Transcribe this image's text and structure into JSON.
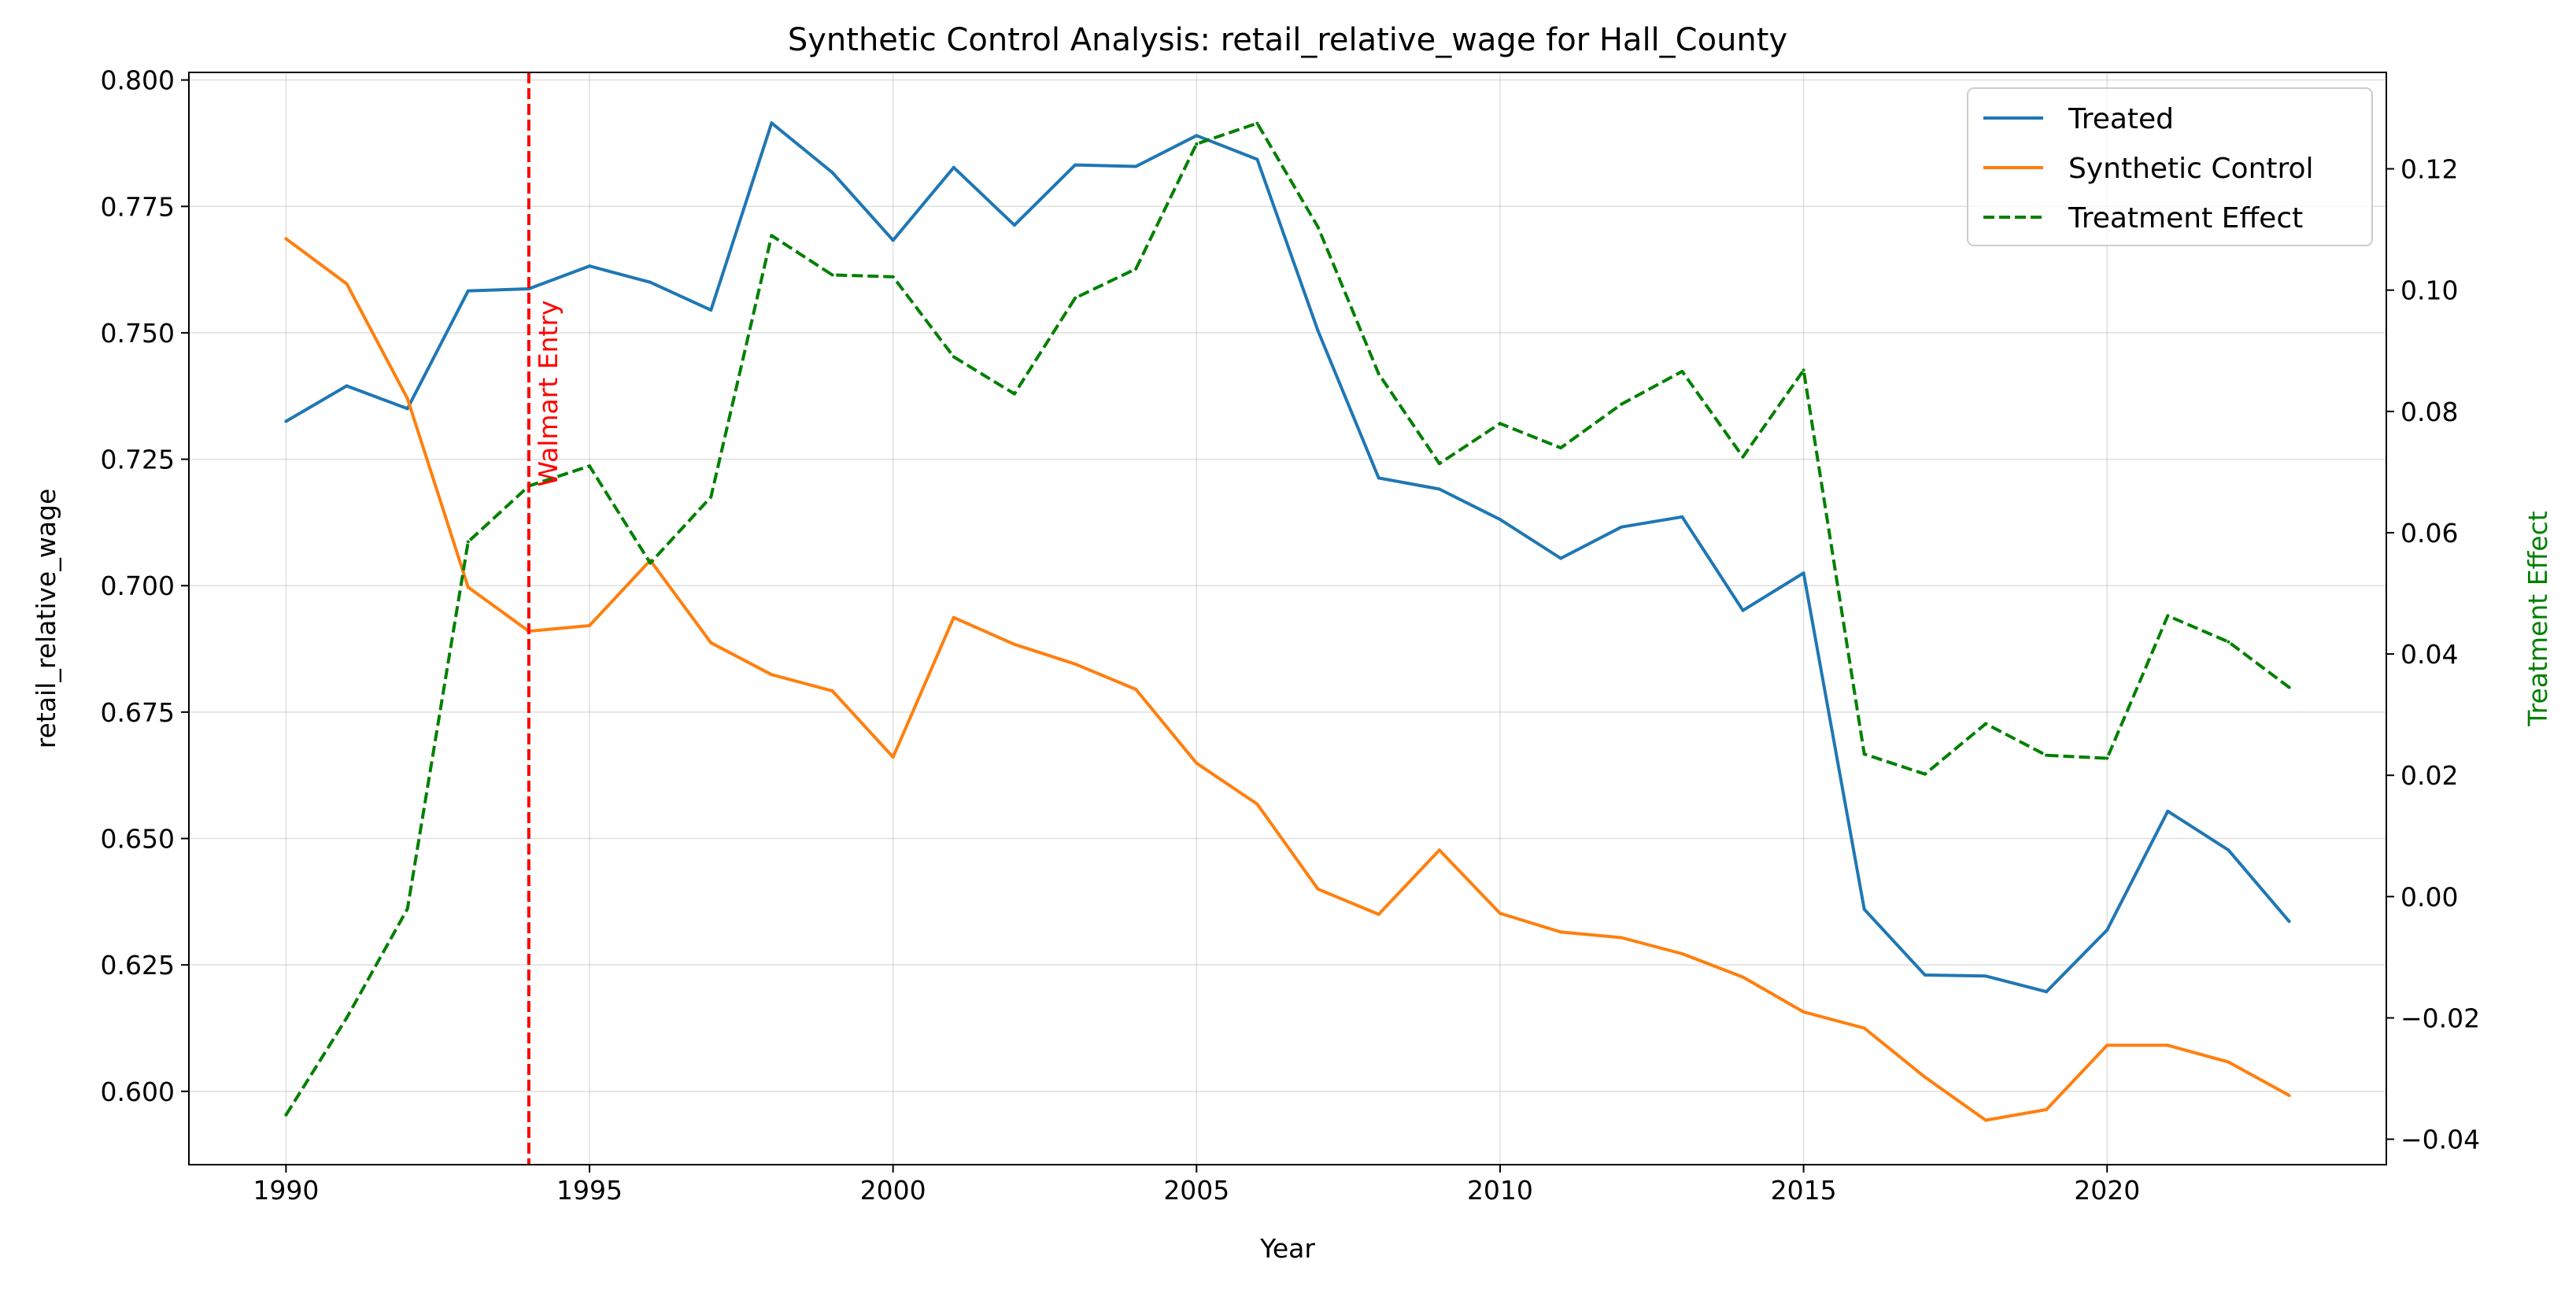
{
  "chart_data": {
    "type": "line",
    "title": "Synthetic Control Analysis: retail_relative_wage for Hall_County",
    "xlabel": "Year",
    "ylabel": "retail_relative_wage",
    "y2label": "Treatment Effect",
    "xlim": [
      1988.4,
      2024.6
    ],
    "ylim": [
      0.5855,
      0.8015
    ],
    "y2lim": [
      -0.0442,
      0.1359
    ],
    "x_ticks": [
      1990,
      1995,
      2000,
      2005,
      2010,
      2015,
      2020
    ],
    "y_ticks": [
      "0.600",
      "0.625",
      "0.650",
      "0.675",
      "0.700",
      "0.725",
      "0.750",
      "0.775",
      "0.800"
    ],
    "y2_ticks": [
      "−0.04",
      "−0.02",
      "0.00",
      "0.02",
      "0.04",
      "0.06",
      "0.08",
      "0.10",
      "0.12"
    ],
    "grid": true,
    "legend_position": "top-right",
    "x": [
      1990,
      1991,
      1992,
      1993,
      1994,
      1995,
      1996,
      1997,
      1998,
      1999,
      2000,
      2001,
      2002,
      2003,
      2004,
      2005,
      2006,
      2007,
      2008,
      2009,
      2010,
      2011,
      2012,
      2013,
      2014,
      2015,
      2016,
      2017,
      2018,
      2019,
      2020,
      2021,
      2022,
      2023
    ],
    "series": [
      {
        "name": "Treated",
        "axis": "left",
        "color": "#1f77b4",
        "style": "solid",
        "values": [
          0.7325,
          0.7395,
          0.735,
          0.7583,
          0.7587,
          0.7632,
          0.76,
          0.7545,
          0.7915,
          0.7817,
          0.7683,
          0.7827,
          0.7713,
          0.7832,
          0.7829,
          0.789,
          0.7843,
          0.7504,
          0.7213,
          0.7191,
          0.7131,
          0.7054,
          0.7116,
          0.7136,
          0.6951,
          0.7025,
          0.636,
          0.623,
          0.6228,
          0.6197,
          0.6319,
          0.6554,
          0.6477,
          0.6336
        ]
      },
      {
        "name": "Synthetic Control",
        "axis": "left",
        "color": "#ff7f0e",
        "style": "solid",
        "values": [
          0.7686,
          0.7597,
          0.737,
          0.6997,
          0.691,
          0.6921,
          0.705,
          0.6887,
          0.6824,
          0.6792,
          0.6661,
          0.6937,
          0.6884,
          0.6845,
          0.6795,
          0.6649,
          0.6568,
          0.64,
          0.635,
          0.6477,
          0.6352,
          0.6315,
          0.6304,
          0.6272,
          0.6226,
          0.6157,
          0.6125,
          0.6028,
          0.5943,
          0.5964,
          0.6091,
          0.6091,
          0.6058,
          0.5992
        ]
      },
      {
        "name": "Treatment Effect",
        "axis": "right",
        "color": "#008000",
        "style": "dashed",
        "values": [
          -0.036,
          -0.02,
          -0.002,
          0.0585,
          0.0677,
          0.071,
          0.055,
          0.0659,
          0.109,
          0.1025,
          0.1022,
          0.089,
          0.0829,
          0.0987,
          0.1035,
          0.1241,
          0.1275,
          0.1104,
          0.0862,
          0.0714,
          0.078,
          0.074,
          0.0812,
          0.0866,
          0.0725,
          0.0868,
          0.0235,
          0.0202,
          0.0285,
          0.0233,
          0.0228,
          0.0463,
          0.042,
          0.0345
        ]
      }
    ],
    "annotations": [
      {
        "type": "vline",
        "x": 1994,
        "color": "#ff0000",
        "style": "dashed",
        "label": "Walmart Entry"
      }
    ]
  }
}
